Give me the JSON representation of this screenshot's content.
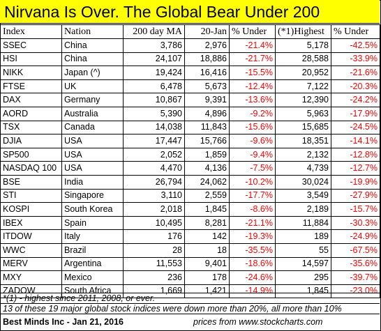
{
  "title": "Nirvana Is Over. The Global Bear Under 200",
  "columns": [
    "Index",
    "Nation",
    "200 day MA",
    "20-Jan",
    "% Under",
    "(*1)Highest",
    "% Under"
  ],
  "rows": [
    {
      "index": "SSEC",
      "nation": "China",
      "ma200": "3,786",
      "jan20": "2,976",
      "under_ma": "-21.4%",
      "highest": "5,178",
      "under_high": "-42.5%"
    },
    {
      "index": "HSI",
      "nation": "China",
      "ma200": "24,107",
      "jan20": "18,886",
      "under_ma": "-21.7%",
      "highest": "28,588",
      "under_high": "-33.9%"
    },
    {
      "index": "NIKK",
      "nation": "Japan (^)",
      "ma200": "19,424",
      "jan20": "16,416",
      "under_ma": "-15.5%",
      "highest": "20,952",
      "under_high": "-21.6%"
    },
    {
      "index": "FTSE",
      "nation": "UK",
      "ma200": "6,478",
      "jan20": "5,673",
      "under_ma": "-12.4%",
      "highest": "7,122",
      "under_high": "-20.3%"
    },
    {
      "index": "DAX",
      "nation": "Germany",
      "ma200": "10,867",
      "jan20": "9,391",
      "under_ma": "-13.6%",
      "highest": "12,390",
      "under_high": "-24.2%"
    },
    {
      "index": "AORD",
      "nation": "Australia",
      "ma200": "5,390",
      "jan20": "4,896",
      "under_ma": "-9.2%",
      "highest": "5,963",
      "under_high": "-17.9%"
    },
    {
      "index": "TSX",
      "nation": "Canada",
      "ma200": "14,038",
      "jan20": "11,843",
      "under_ma": "-15.6%",
      "highest": "15,685",
      "under_high": "-24.5%"
    },
    {
      "index": "DJIA",
      "nation": "USA",
      "ma200": "17,447",
      "jan20": "15,766",
      "under_ma": "-9.6%",
      "highest": "18,351",
      "under_high": "-14.1%"
    },
    {
      "index": "SP500",
      "nation": "USA",
      "ma200": "2,052",
      "jan20": "1,859",
      "under_ma": "-9.4%",
      "highest": "2,132",
      "under_high": "-12.8%"
    },
    {
      "index": "NASDAQ 100",
      "nation": "USA",
      "ma200": "4,470",
      "jan20": "4,136",
      "under_ma": "-7.5%",
      "highest": "4,739",
      "under_high": "-12.7%"
    },
    {
      "index": "BSE",
      "nation": "India",
      "ma200": "26,794",
      "jan20": "24,062",
      "under_ma": "-10.2%",
      "highest": "30,024",
      "under_high": "-19.9%"
    },
    {
      "index": "STI",
      "nation": "Singapore",
      "ma200": "3,110",
      "jan20": "2,559",
      "under_ma": "-17.7%",
      "highest": "3,549",
      "under_high": "-27.9%"
    },
    {
      "index": "KOSPI",
      "nation": "South Korea",
      "ma200": "2,018",
      "jan20": "1,845",
      "under_ma": "-8.6%",
      "highest": "2,189",
      "under_high": "-15.7%"
    },
    {
      "index": "IBEX",
      "nation": "Spain",
      "ma200": "10,495",
      "jan20": "8,281",
      "under_ma": "-21.1%",
      "highest": "11,884",
      "under_high": "-30.3%"
    },
    {
      "index": "ITDOW",
      "nation": "Italy",
      "ma200": "176",
      "jan20": "142",
      "under_ma": "-19.3%",
      "highest": "189",
      "under_high": "-24.9%"
    },
    {
      "index": "WWC",
      "nation": "Brazil",
      "ma200": "28",
      "jan20": "18",
      "under_ma": "-35.5%",
      "highest": "55",
      "under_high": "-67.5%"
    },
    {
      "index": "MERV",
      "nation": "Argentina",
      "ma200": "11,553",
      "jan20": "9,401",
      "under_ma": "-18.6%",
      "highest": "14,597",
      "under_high": "-35.6%"
    },
    {
      "index": "MXY",
      "nation": "Mexico",
      "ma200": "236",
      "jan20": "178",
      "under_ma": "-24.6%",
      "highest": "295",
      "under_high": "-39.7%"
    },
    {
      "index": "ZADOW",
      "nation": "South Africa",
      "ma200": "1,669",
      "jan20": "1,421",
      "under_ma": "-14.9%",
      "highest": "1,845",
      "under_high": "-23.0%"
    }
  ],
  "footnote": "*(1) - highest since 2011, 2008, or ever.",
  "summary": "13 of these 19 major global stock indices were down more than 20%, all more than 10%",
  "credit_left": "Best Minds Inc - Jan 21, 2016",
  "credit_right": "prices from www.stockcharts.com",
  "colors": {
    "title_bg": "#ffff00",
    "negative": "#ff0000"
  }
}
